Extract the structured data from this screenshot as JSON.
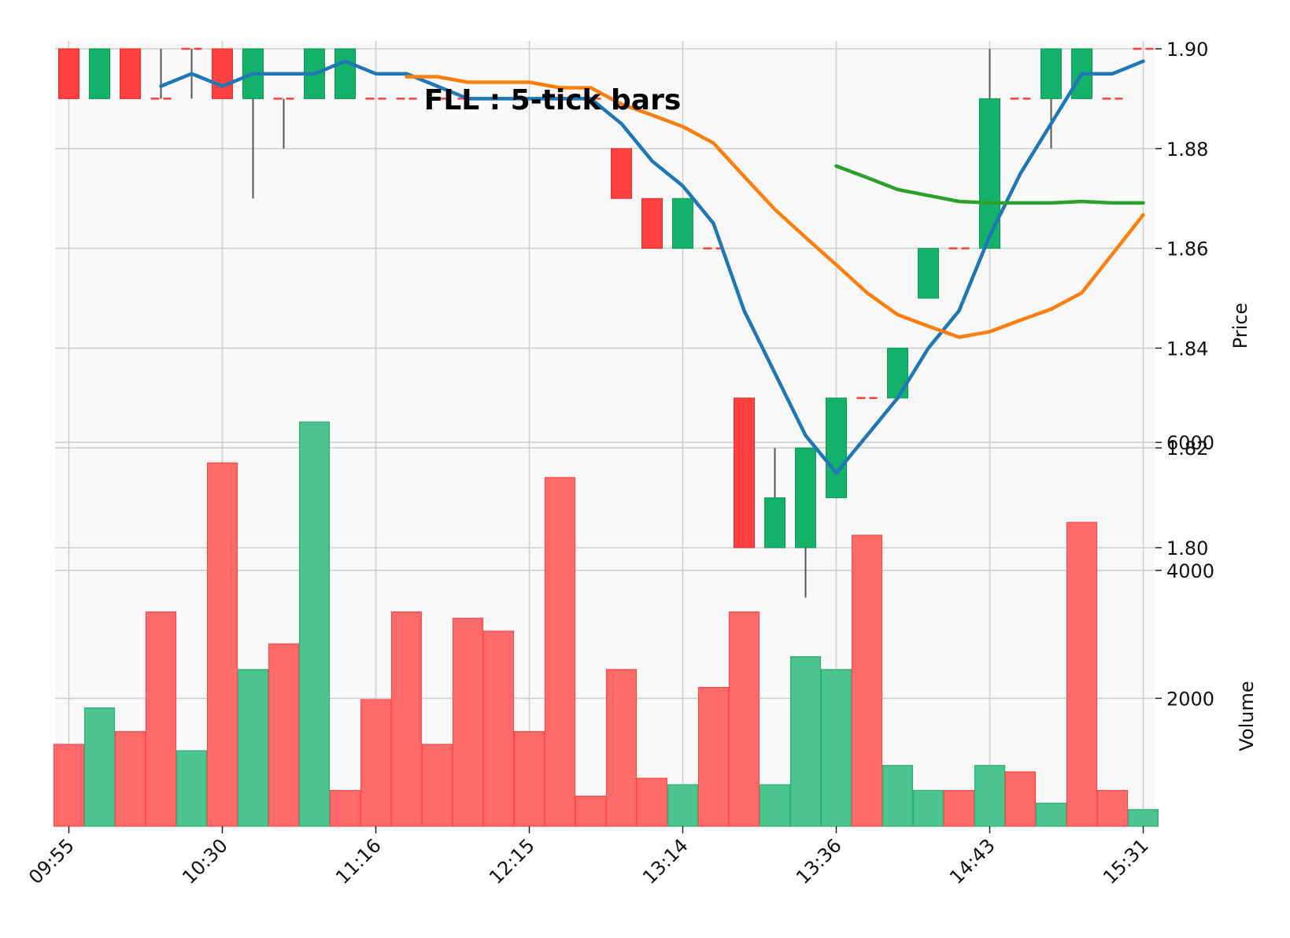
{
  "chart_data": {
    "type": "candlestick",
    "title": "FLL : 5-tick bars",
    "x_tick_labels": [
      "09:55",
      "10:30",
      "11:16",
      "12:15",
      "13:14",
      "13:36",
      "14:43",
      "15:31"
    ],
    "x_tick_indices": [
      0,
      5,
      10,
      15,
      20,
      25,
      30,
      35
    ],
    "price_axis": {
      "label": "Price",
      "ylim": [
        1.79,
        1.9
      ],
      "ticks": [
        "1.80",
        "1.82",
        "1.84",
        "1.86",
        "1.88",
        "1.90"
      ]
    },
    "volume_axis": {
      "label": "Volume",
      "ylim": [
        0,
        6500
      ],
      "ticks": [
        "2000",
        "4000",
        "6000"
      ]
    },
    "colors": {
      "up": "#14b16a",
      "down": "#ff4040",
      "ma_fast": "#1f77b4",
      "ma_mid": "#ff7f0e",
      "ma_slow": "#2ca02c",
      "vol_up": "#4cc48f",
      "vol_down": "#ff6b6b",
      "panel": "#f9f9f9",
      "grid": "#d0d0d0"
    },
    "bars": [
      {
        "o": 1.9,
        "h": 1.9,
        "l": 1.89,
        "c": 1.89
      },
      {
        "o": 1.89,
        "h": 1.9,
        "l": 1.89,
        "c": 1.9
      },
      {
        "o": 1.9,
        "h": 1.9,
        "l": 1.89,
        "c": 1.89
      },
      {
        "o": 1.89,
        "h": 1.9,
        "l": 1.89,
        "c": 1.89
      },
      {
        "o": 1.9,
        "h": 1.9,
        "l": 1.89,
        "c": 1.9
      },
      {
        "o": 1.9,
        "h": 1.9,
        "l": 1.89,
        "c": 1.89
      },
      {
        "o": 1.89,
        "h": 1.9,
        "l": 1.87,
        "c": 1.9
      },
      {
        "o": 1.89,
        "h": 1.89,
        "l": 1.88,
        "c": 1.89
      },
      {
        "o": 1.89,
        "h": 1.9,
        "l": 1.89,
        "c": 1.9
      },
      {
        "o": 1.89,
        "h": 1.9,
        "l": 1.89,
        "c": 1.9
      },
      {
        "o": 1.89,
        "h": 1.89,
        "l": 1.89,
        "c": 1.89
      },
      {
        "o": 1.89,
        "h": 1.89,
        "l": 1.89,
        "c": 1.89
      },
      {
        "o": 1.89,
        "h": 1.89,
        "l": 1.89,
        "c": 1.89
      },
      {
        "o": 1.89,
        "h": 1.89,
        "l": 1.89,
        "c": 1.89
      },
      {
        "o": 1.89,
        "h": 1.89,
        "l": 1.89,
        "c": 1.89
      },
      {
        "o": 1.89,
        "h": 1.89,
        "l": 1.89,
        "c": 1.89
      },
      {
        "o": 1.89,
        "h": 1.89,
        "l": 1.89,
        "c": 1.89
      },
      {
        "o": 1.89,
        "h": 1.89,
        "l": 1.89,
        "c": 1.89
      },
      {
        "o": 1.88,
        "h": 1.88,
        "l": 1.87,
        "c": 1.87
      },
      {
        "o": 1.87,
        "h": 1.87,
        "l": 1.86,
        "c": 1.86
      },
      {
        "o": 1.86,
        "h": 1.87,
        "l": 1.86,
        "c": 1.87
      },
      {
        "o": 1.86,
        "h": 1.86,
        "l": 1.86,
        "c": 1.86
      },
      {
        "o": 1.83,
        "h": 1.83,
        "l": 1.8,
        "c": 1.8
      },
      {
        "o": 1.8,
        "h": 1.82,
        "l": 1.8,
        "c": 1.81
      },
      {
        "o": 1.8,
        "h": 1.82,
        "l": 1.79,
        "c": 1.82
      },
      {
        "o": 1.81,
        "h": 1.83,
        "l": 1.81,
        "c": 1.83
      },
      {
        "o": 1.83,
        "h": 1.83,
        "l": 1.83,
        "c": 1.83
      },
      {
        "o": 1.83,
        "h": 1.84,
        "l": 1.83,
        "c": 1.84
      },
      {
        "o": 1.85,
        "h": 1.86,
        "l": 1.85,
        "c": 1.86
      },
      {
        "o": 1.86,
        "h": 1.86,
        "l": 1.86,
        "c": 1.86
      },
      {
        "o": 1.86,
        "h": 1.9,
        "l": 1.86,
        "c": 1.89
      },
      {
        "o": 1.89,
        "h": 1.89,
        "l": 1.89,
        "c": 1.89
      },
      {
        "o": 1.89,
        "h": 1.9,
        "l": 1.88,
        "c": 1.9
      },
      {
        "o": 1.89,
        "h": 1.9,
        "l": 1.89,
        "c": 1.9
      },
      {
        "o": 1.89,
        "h": 1.89,
        "l": 1.89,
        "c": 1.89
      },
      {
        "o": 1.9,
        "h": 1.9,
        "l": 1.9,
        "c": 1.9
      }
    ],
    "volume": [
      {
        "v": 1280,
        "up": false
      },
      {
        "v": 1850,
        "up": true
      },
      {
        "v": 1480,
        "up": false
      },
      {
        "v": 3350,
        "up": false
      },
      {
        "v": 1180,
        "up": true
      },
      {
        "v": 5680,
        "up": false
      },
      {
        "v": 2450,
        "up": true
      },
      {
        "v": 2850,
        "up": false
      },
      {
        "v": 6320,
        "up": true
      },
      {
        "v": 560,
        "up": false
      },
      {
        "v": 1980,
        "up": false
      },
      {
        "v": 3350,
        "up": false
      },
      {
        "v": 1280,
        "up": false
      },
      {
        "v": 3250,
        "up": false
      },
      {
        "v": 3050,
        "up": false
      },
      {
        "v": 1480,
        "up": false
      },
      {
        "v": 5450,
        "up": false
      },
      {
        "v": 470,
        "up": false
      },
      {
        "v": 2450,
        "up": false
      },
      {
        "v": 750,
        "up": false
      },
      {
        "v": 650,
        "up": true
      },
      {
        "v": 2170,
        "up": false
      },
      {
        "v": 3350,
        "up": false
      },
      {
        "v": 650,
        "up": true
      },
      {
        "v": 2650,
        "up": true
      },
      {
        "v": 2450,
        "up": true
      },
      {
        "v": 4550,
        "up": false
      },
      {
        "v": 950,
        "up": true
      },
      {
        "v": 560,
        "up": true
      },
      {
        "v": 560,
        "up": false
      },
      {
        "v": 950,
        "up": true
      },
      {
        "v": 850,
        "up": false
      },
      {
        "v": 360,
        "up": true
      },
      {
        "v": 4750,
        "up": false
      },
      {
        "v": 560,
        "up": false
      },
      {
        "v": 260,
        "up": true
      }
    ],
    "moving_averages": [
      {
        "key": "ma_fast",
        "start": 3,
        "values": [
          1.8925,
          1.895,
          1.8925,
          1.895,
          1.895,
          1.895,
          1.8975,
          1.895,
          1.895,
          1.8925,
          1.89,
          1.89,
          1.89,
          1.89,
          1.89,
          1.885,
          1.8775,
          1.8725,
          1.865,
          1.8475,
          1.835,
          1.8225,
          1.815,
          1.8225,
          1.83,
          1.84,
          1.8475,
          1.8625,
          1.875,
          1.885,
          1.895,
          1.895,
          1.8975
        ]
      },
      {
        "key": "ma_mid",
        "start": 11,
        "values": [
          1.8944,
          1.8944,
          1.8933,
          1.8933,
          1.8933,
          1.8922,
          1.8922,
          1.8889,
          1.8867,
          1.8844,
          1.8811,
          1.8744,
          1.8678,
          1.8622,
          1.8567,
          1.8511,
          1.8467,
          1.8444,
          1.8422,
          1.8433,
          1.8456,
          1.8478,
          1.8511,
          1.8589,
          1.8667
        ]
      },
      {
        "key": "ma_slow",
        "start": 25,
        "values": [
          1.8765,
          1.8742,
          1.8718,
          1.8706,
          1.8694,
          1.8691,
          1.8691,
          1.8691,
          1.8694,
          1.8691,
          1.8691
        ]
      }
    ]
  }
}
